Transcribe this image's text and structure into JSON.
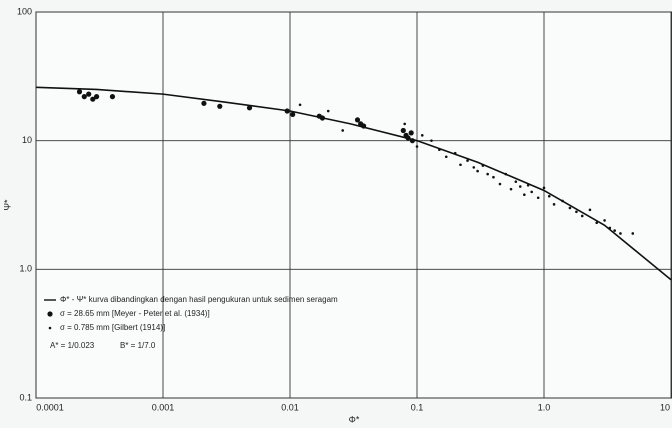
{
  "chart_data": {
    "type": "scatter",
    "xlabel": "Φ*",
    "ylabel": "Ψ*",
    "log_x": true,
    "log_y": true,
    "grid": true,
    "legend": "lower left",
    "xlim": [
      0.0001,
      10
    ],
    "ylim": [
      0.1,
      100
    ],
    "xticks": [
      0.0001,
      0.001,
      0.01,
      0.1,
      {
        "value": 1,
        "label": "1.0"
      },
      10
    ],
    "yticks": [
      0.1,
      {
        "value": 1,
        "label": "1.0"
      },
      10,
      100
    ],
    "series": [
      {
        "name": "Φ* - Ψ* kurva dibandingkan dengan hasil pengukuran untuk sedimen seragam",
        "type": "line",
        "color": "#111",
        "x": [
          0.0001,
          0.0003,
          0.001,
          0.003,
          0.01,
          0.03,
          0.1,
          0.3,
          1,
          3,
          10
        ],
        "values": [
          26,
          25,
          23,
          20,
          17,
          13.5,
          10,
          6.8,
          4.1,
          2.2,
          0.83
        ]
      },
      {
        "name": "σ = 28.65 mm [Meyer - Peter et al. (1934)]",
        "type": "scatter",
        "marker": "large",
        "color": "#111",
        "x": [
          0.00022,
          0.00024,
          0.00026,
          0.00028,
          0.0003,
          0.0004,
          0.0021,
          0.0028,
          0.0048,
          0.0095,
          0.0105,
          0.017,
          0.018,
          0.034,
          0.036,
          0.038,
          0.078,
          0.082,
          0.085,
          0.09,
          0.092
        ],
        "values": [
          24,
          22,
          23,
          21,
          22,
          22,
          19.5,
          18.5,
          18,
          17,
          16,
          15.5,
          15,
          14.5,
          13.5,
          13,
          12,
          11,
          10.5,
          11.5,
          10
        ]
      },
      {
        "name": "σ = 0.785 mm [Gilbert (1914)]",
        "type": "scatter",
        "marker": "small",
        "color": "#111",
        "x": [
          0.012,
          0.02,
          0.026,
          0.08,
          0.1,
          0.11,
          0.13,
          0.15,
          0.17,
          0.2,
          0.22,
          0.25,
          0.28,
          0.3,
          0.33,
          0.36,
          0.4,
          0.45,
          0.5,
          0.55,
          0.6,
          0.65,
          0.7,
          0.75,
          0.8,
          0.9,
          1.0,
          1.1,
          1.2,
          1.4,
          1.6,
          1.8,
          2.0,
          2.3,
          2.6,
          3.0,
          3.3,
          3.6,
          4.0,
          5.0
        ],
        "values": [
          19,
          17,
          12,
          13.5,
          9,
          11,
          10,
          8.5,
          7.5,
          8,
          6.5,
          7,
          6.2,
          5.8,
          6.4,
          5.5,
          5.2,
          4.6,
          5.5,
          4.2,
          4.8,
          4.4,
          3.8,
          4.5,
          4.0,
          3.6,
          4.3,
          3.7,
          3.2,
          3.4,
          3.0,
          2.8,
          2.6,
          2.9,
          2.3,
          2.4,
          2.1,
          2.0,
          1.9,
          1.9
        ]
      }
    ],
    "annotations": [
      "A* = 1/0.023",
      "B* = 1/7.0"
    ]
  }
}
